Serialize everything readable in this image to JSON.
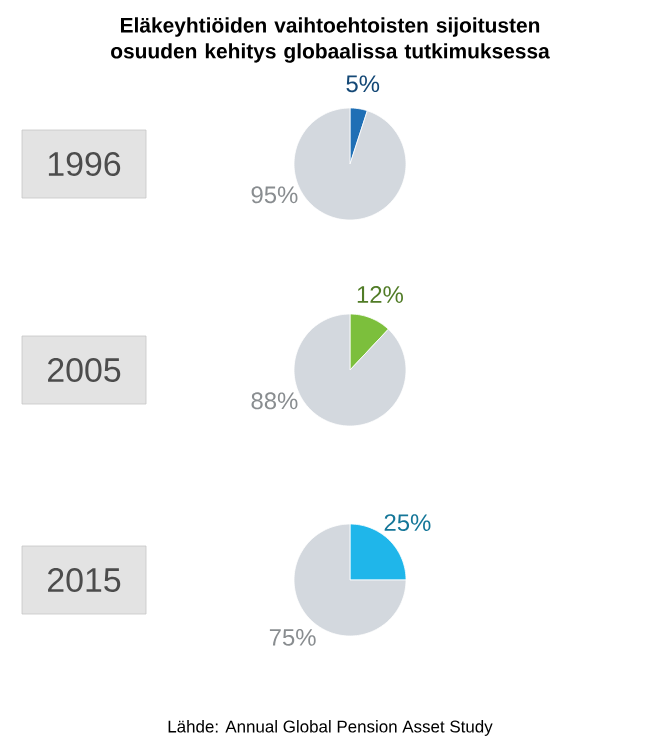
{
  "chart_data": [
    {
      "type": "pie",
      "title": "Eläkeyhtiöiden vaihtoehtoisten sijoitusten osuuden kehitys globaalissa tutkimuksessa",
      "subtitle": "1996",
      "categories": [
        null,
        null
      ],
      "values": [
        5,
        95
      ],
      "colors": [
        "#1f6fb5",
        "#d3d8de"
      ],
      "value_labels": [
        "5%",
        "95%"
      ]
    },
    {
      "type": "pie",
      "subtitle": "2005",
      "categories": [
        null,
        null
      ],
      "values": [
        12,
        88
      ],
      "colors": [
        "#7cbf3c",
        "#d3d8de"
      ],
      "value_labels": [
        "12%",
        "88%"
      ]
    },
    {
      "type": "pie",
      "subtitle": "2015",
      "categories": [
        null,
        null
      ],
      "values": [
        25,
        75
      ],
      "colors": [
        "#1fb6ea",
        "#d3d8de"
      ],
      "value_labels": [
        "25%",
        "75%"
      ],
      "annotations": [
        "Lähde: Annual Global Pension Asset Study"
      ]
    }
  ]
}
